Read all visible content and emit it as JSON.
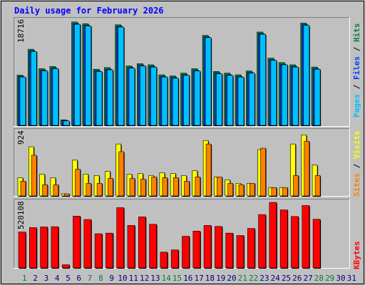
{
  "title": "Daily usage for February 2026",
  "colors": {
    "background": "#c0c0c0",
    "title": "#0000ff",
    "pages": "#00c0ff",
    "files": "#0040ff",
    "hits": "#008040",
    "visits": "#ffff00",
    "sites": "#ff8000",
    "kbytes": "#ff0000",
    "weekday_label": "#000080",
    "weekend_label": "#008040"
  },
  "chart_data": [
    {
      "type": "bar",
      "panel": "hits_files_pages",
      "y_max_label": "18716",
      "ylim": [
        0,
        18716
      ],
      "right_label": [
        "Pages",
        "/",
        "Files",
        "/",
        "Hits"
      ],
      "x": [
        1,
        2,
        3,
        4,
        5,
        6,
        7,
        8,
        9,
        10,
        11,
        12,
        13,
        14,
        15,
        16,
        17,
        18,
        19,
        20,
        21,
        22,
        23,
        24,
        25,
        26,
        27,
        28
      ],
      "series": [
        {
          "name": "Hits",
          "values": [
            9050,
            13700,
            10200,
            10600,
            1000,
            18600,
            18300,
            10100,
            10400,
            18100,
            10700,
            11100,
            10900,
            9100,
            8900,
            9400,
            10200,
            16200,
            9700,
            9400,
            9100,
            9800,
            16800,
            12100,
            11300,
            10900,
            18400,
            10500
          ]
        },
        {
          "name": "Files",
          "values": [
            8800,
            13400,
            9900,
            10300,
            900,
            18300,
            18000,
            9800,
            10100,
            17800,
            10400,
            10800,
            10600,
            8800,
            8600,
            9100,
            9900,
            15900,
            9400,
            9100,
            8800,
            9500,
            16500,
            11800,
            11000,
            10600,
            18100,
            10200
          ]
        },
        {
          "name": "Pages",
          "values": [
            8700,
            13300,
            9800,
            10200,
            800,
            18200,
            17900,
            9700,
            10000,
            17700,
            10300,
            10700,
            10500,
            8700,
            8500,
            9000,
            9800,
            15800,
            9300,
            9000,
            8700,
            9400,
            16400,
            11700,
            10900,
            10500,
            18000,
            10100
          ]
        }
      ]
    },
    {
      "type": "bar",
      "panel": "visits_sites",
      "y_max_label": "924",
      "ylim": [
        0,
        924
      ],
      "right_label": [
        "Sites",
        "/",
        "Visits"
      ],
      "x": [
        1,
        2,
        3,
        4,
        5,
        6,
        7,
        8,
        9,
        10,
        11,
        12,
        13,
        14,
        15,
        16,
        17,
        18,
        19,
        20,
        21,
        22,
        23,
        24,
        25,
        26,
        27,
        28
      ],
      "series": [
        {
          "name": "Visits",
          "values": [
            260,
            700,
            310,
            260,
            30,
            510,
            310,
            290,
            350,
            740,
            310,
            320,
            290,
            330,
            320,
            290,
            360,
            790,
            270,
            230,
            180,
            180,
            660,
            120,
            120,
            740,
            870,
            440
          ]
        },
        {
          "name": "Sites",
          "values": [
            210,
            580,
            160,
            160,
            30,
            380,
            180,
            180,
            250,
            630,
            250,
            240,
            270,
            260,
            260,
            210,
            270,
            740,
            270,
            180,
            160,
            180,
            680,
            120,
            120,
            290,
            780,
            290
          ]
        }
      ]
    },
    {
      "type": "bar",
      "panel": "kbytes",
      "y_max_label": "520108",
      "ylim": [
        0,
        520108
      ],
      "right_label": [
        "KBytes"
      ],
      "x": [
        1,
        2,
        3,
        4,
        5,
        6,
        7,
        8,
        9,
        10,
        11,
        12,
        13,
        14,
        15,
        16,
        17,
        18,
        19,
        20,
        21,
        22,
        23,
        24,
        25,
        26,
        27,
        28
      ],
      "series": [
        {
          "name": "KBytes",
          "values": [
            285000,
            320000,
            325000,
            327000,
            25000,
            411000,
            384000,
            271000,
            276000,
            478000,
            337000,
            405000,
            346000,
            125000,
            143000,
            251000,
            292000,
            337000,
            329000,
            276000,
            257000,
            313000,
            423000,
            520000,
            460000,
            408000,
            495000,
            386000
          ]
        }
      ]
    }
  ],
  "x_tick_labels": [
    "1",
    "2",
    "3",
    "4",
    "5",
    "6",
    "7",
    "8",
    "9",
    "10",
    "11",
    "12",
    "13",
    "14",
    "15",
    "16",
    "17",
    "18",
    "19",
    "20",
    "21",
    "22",
    "23",
    "24",
    "25",
    "26",
    "27",
    "28",
    "29",
    "30",
    "31"
  ],
  "weekend_days": [
    1,
    7,
    8,
    14,
    15,
    21,
    22,
    28,
    29
  ]
}
